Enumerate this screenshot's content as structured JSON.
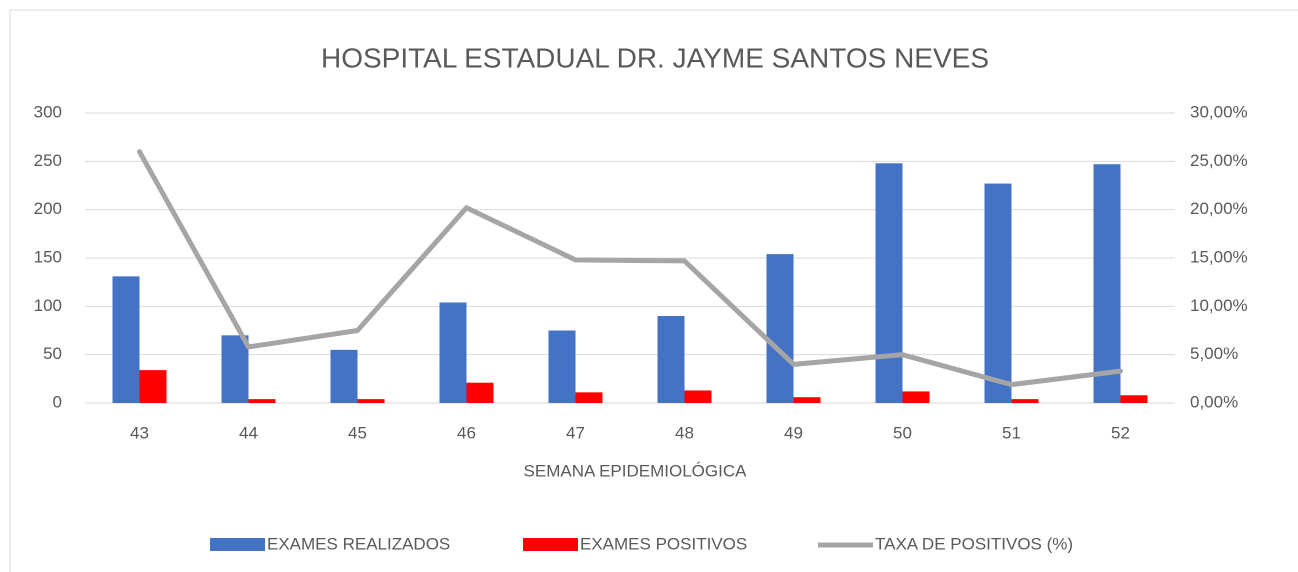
{
  "chart_data": {
    "type": "bar_line",
    "title": "HOSPITAL ESTADUAL DR. JAYME SANTOS NEVES",
    "x_label": "SEMANA EPIDEMIOLÓGICA",
    "categories": [
      "43",
      "44",
      "45",
      "46",
      "47",
      "48",
      "49",
      "50",
      "51",
      "52"
    ],
    "series": [
      {
        "name": "EXAMES REALIZADOS",
        "color": "#4472c4",
        "type": "bar",
        "values": [
          131,
          70,
          55,
          104,
          75,
          90,
          154,
          248,
          227,
          247
        ]
      },
      {
        "name": "EXAMES POSITIVOS",
        "color": "#ff0000",
        "type": "bar",
        "values": [
          34,
          4,
          4,
          21,
          11,
          13,
          6,
          12,
          4,
          8
        ]
      },
      {
        "name": "TAXA DE POSITIVOS (%)",
        "color": "#a5a5a5",
        "type": "line",
        "axis": "y2",
        "values": [
          26.0,
          5.8,
          7.5,
          20.2,
          14.8,
          14.7,
          4.0,
          5.0,
          1.9,
          3.3
        ]
      }
    ],
    "ylim": [
      0,
      300
    ],
    "yticks": [
      0,
      50,
      100,
      150,
      200,
      250,
      300
    ],
    "y2lim": [
      0,
      30
    ],
    "y2ticks": [
      {
        "value": 0,
        "label": "0,00%"
      },
      {
        "value": 5,
        "label": "5,00%"
      },
      {
        "value": 10,
        "label": "10,00%"
      },
      {
        "value": 15,
        "label": "15,00%"
      },
      {
        "value": 20,
        "label": "20,00%"
      },
      {
        "value": 25,
        "label": "25,00%"
      },
      {
        "value": 30,
        "label": "30,00%"
      }
    ],
    "grid": true,
    "legend": "bottom"
  }
}
